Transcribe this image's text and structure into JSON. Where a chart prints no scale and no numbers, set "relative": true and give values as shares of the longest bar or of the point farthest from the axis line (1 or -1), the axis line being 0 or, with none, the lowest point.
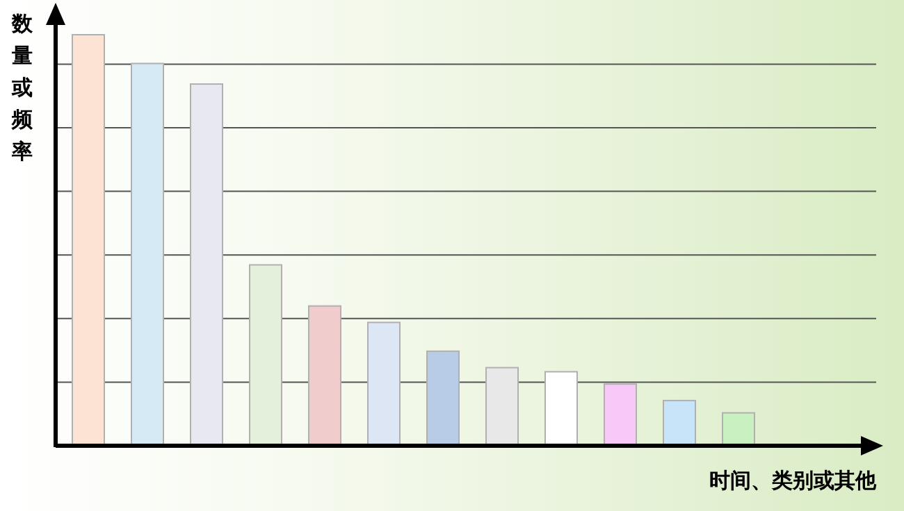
{
  "chart_data": {
    "type": "bar",
    "relative": true,
    "xlabel": "时间、类别或其他",
    "ylabel": "数量或频率",
    "grid": "y",
    "categories": [
      null,
      null,
      null,
      null,
      null,
      null,
      null,
      null,
      null,
      null,
      null,
      null
    ],
    "values": [
      1,
      0.93,
      0.88,
      0.44,
      0.34,
      0.3,
      0.23,
      0.19,
      0.18,
      0.15,
      0.11,
      0.08
    ],
    "colors": [
      "#fde3d3",
      "#d5eaf5",
      "#e8e8f0",
      "#e4f0dc",
      "#f0cccc",
      "#dde6f5",
      "#b8cce8",
      "#e8e8e8",
      "#ffffff",
      "#f8c8f8",
      "#c8e4f8",
      "#c8f0c0"
    ]
  }
}
